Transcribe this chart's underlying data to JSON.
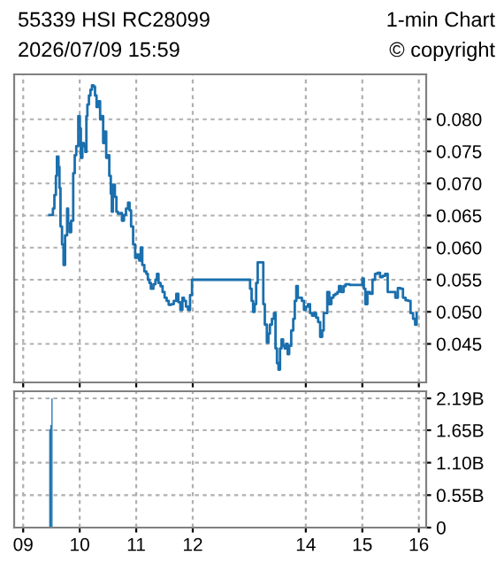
{
  "chart_data": [
    {
      "type": "step",
      "title": "55339 HSI RC28099",
      "annotations": [
        "1-min Chart",
        "2026/07/09 15:59",
        "© copyright"
      ],
      "series": [
        {
          "color": "#1a6fad",
          "x": [
            9.463,
            9.526,
            9.552,
            9.579,
            9.597,
            9.624,
            9.642,
            9.66,
            9.687,
            9.714,
            9.741,
            9.777,
            9.795,
            9.822,
            9.849,
            9.885,
            9.912,
            9.939,
            9.975,
            10.002,
            10.02,
            10.047,
            10.073,
            10.1,
            10.118,
            10.136,
            10.163,
            10.19,
            10.217,
            10.244,
            10.271,
            10.298,
            10.334,
            10.361,
            10.388,
            10.415,
            10.442,
            10.469,
            10.496,
            10.523,
            10.55,
            10.568,
            10.586,
            10.622,
            10.649,
            10.676,
            10.72,
            10.747,
            10.783,
            10.819,
            10.855,
            10.882,
            10.909,
            10.945,
            10.981,
            11.017,
            11.053,
            11.08,
            11.107,
            11.143,
            11.179,
            11.206,
            11.233,
            11.259,
            11.304,
            11.34,
            11.367,
            11.394,
            11.43,
            11.466,
            11.502,
            11.538,
            11.574,
            11.619,
            11.664,
            11.709,
            11.745,
            11.781,
            11.817,
            11.844,
            11.88,
            11.916,
            11.952,
            11.987,
            13.014,
            13.041,
            13.068,
            13.095,
            13.122,
            13.149,
            13.185,
            13.221,
            13.248,
            13.275,
            13.311,
            13.338,
            13.365,
            13.401,
            13.437,
            13.464,
            13.49,
            13.517,
            13.544,
            13.571,
            13.598,
            13.625,
            13.652,
            13.679,
            13.706,
            13.742,
            13.778,
            13.805,
            13.832,
            13.859,
            13.895,
            13.931,
            13.967,
            14.003,
            14.039,
            14.075,
            14.11,
            14.146,
            14.182,
            14.218,
            14.254,
            14.29,
            14.317,
            14.344,
            14.38,
            14.416,
            14.452,
            14.488,
            14.524,
            14.56,
            14.587,
            14.623,
            14.668,
            14.704,
            14.775,
            14.865,
            14.955,
            15.0,
            15.027,
            15.054,
            15.09,
            15.135,
            15.18,
            15.225,
            15.269,
            15.314,
            15.359,
            15.404,
            15.449,
            15.539,
            15.584,
            15.629,
            15.674,
            15.719,
            15.764,
            15.809,
            15.853,
            15.898,
            15.934,
            15.961
          ],
          "values": [
            0.0651,
            0.0661,
            0.0682,
            0.0712,
            0.0742,
            0.0726,
            0.0693,
            0.0633,
            0.0605,
            0.0573,
            0.0619,
            0.0661,
            0.0638,
            0.0624,
            0.0642,
            0.0716,
            0.0744,
            0.0758,
            0.0805,
            0.0786,
            0.074,
            0.0763,
            0.0758,
            0.0749,
            0.0805,
            0.0823,
            0.0837,
            0.0846,
            0.0853,
            0.0851,
            0.0837,
            0.0819,
            0.0828,
            0.08,
            0.0805,
            0.0763,
            0.0781,
            0.074,
            0.0744,
            0.0712,
            0.0684,
            0.0656,
            0.0698,
            0.0679,
            0.0656,
            0.0653,
            0.0654,
            0.0642,
            0.0651,
            0.0661,
            0.067,
            0.0658,
            0.0633,
            0.0605,
            0.0584,
            0.0589,
            0.058,
            0.06,
            0.0573,
            0.0563,
            0.0559,
            0.055,
            0.0545,
            0.0536,
            0.0543,
            0.055,
            0.0559,
            0.0545,
            0.054,
            0.0531,
            0.0522,
            0.0517,
            0.0511,
            0.0512,
            0.0517,
            0.0528,
            0.0515,
            0.0503,
            0.0522,
            0.0517,
            0.0508,
            0.0503,
            0.0526,
            0.055,
            0.0536,
            0.0517,
            0.05,
            0.0512,
            0.0545,
            0.0577,
            0.0577,
            0.0577,
            0.0512,
            0.048,
            0.0452,
            0.0466,
            0.048,
            0.0489,
            0.0498,
            0.0443,
            0.042,
            0.041,
            0.0443,
            0.0457,
            0.0447,
            0.0443,
            0.045,
            0.0434,
            0.0447,
            0.0471,
            0.0489,
            0.0517,
            0.054,
            0.0522,
            0.0522,
            0.0517,
            0.0503,
            0.0508,
            0.0512,
            0.0498,
            0.0494,
            0.0498,
            0.0491,
            0.0484,
            0.0461,
            0.0471,
            0.0498,
            0.0498,
            0.0531,
            0.0512,
            0.0522,
            0.0526,
            0.0528,
            0.0531,
            0.054,
            0.0531,
            0.054,
            0.0543,
            0.0542,
            0.0542,
            0.0542,
            0.0552,
            0.0536,
            0.0512,
            0.0531,
            0.0528,
            0.055,
            0.0559,
            0.0561,
            0.0554,
            0.0556,
            0.0559,
            0.0531,
            0.0531,
            0.0522,
            0.0537,
            0.0536,
            0.0522,
            0.0518,
            0.0517,
            0.0498,
            0.0489,
            0.048,
            0.0498
          ]
        }
      ],
      "xlim": [
        8.84,
        16.13
      ],
      "xticks": [
        9,
        10,
        11,
        12,
        14,
        15,
        16
      ],
      "ylim": [
        0.039,
        0.087
      ],
      "yticks": [
        {
          "value": 0.045,
          "label": "0.045"
        },
        {
          "value": 0.05,
          "label": "0.050"
        },
        {
          "value": 0.055,
          "label": "0.055"
        },
        {
          "value": 0.06,
          "label": "0.060"
        },
        {
          "value": 0.065,
          "label": "0.065"
        },
        {
          "value": 0.07,
          "label": "0.070"
        },
        {
          "value": 0.075,
          "label": "0.075"
        },
        {
          "value": 0.08,
          "label": "0.080"
        }
      ],
      "grid": true,
      "tick_labels": "y"
    },
    {
      "type": "bar",
      "x": [
        9.47,
        9.49,
        9.51
      ],
      "values": [
        1.67,
        1.74,
        2.19
      ],
      "color": "#1a6fad",
      "xlim": [
        8.84,
        16.13
      ],
      "xticks": [
        {
          "value": 9,
          "label": "09"
        },
        10,
        11,
        12,
        14,
        15,
        16
      ],
      "ylim": [
        0,
        2.31
      ],
      "yticks": [
        0,
        {
          "value": 0.55,
          "label": "0.55B"
        },
        {
          "value": 1.1,
          "label": "1.10B"
        },
        {
          "value": 1.65,
          "label": "1.65B"
        },
        {
          "value": 2.19,
          "label": "2.19B"
        }
      ],
      "grid": true
    }
  ]
}
